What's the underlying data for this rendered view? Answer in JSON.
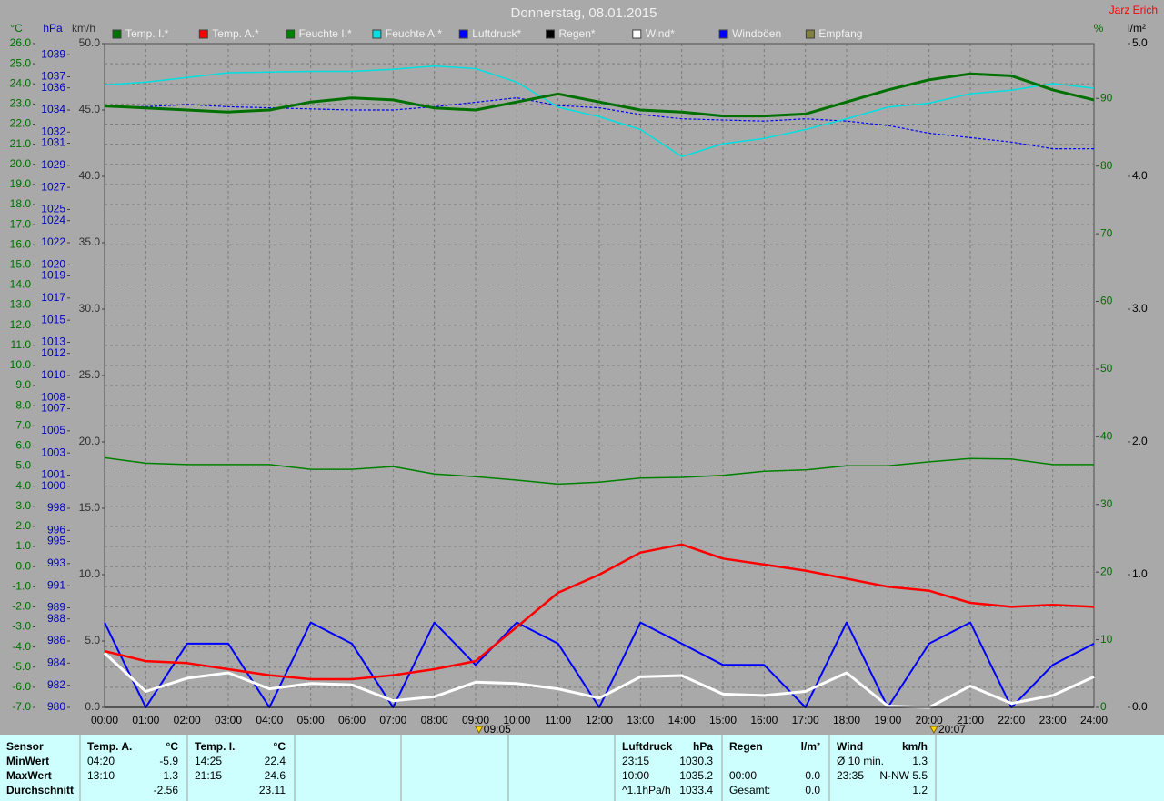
{
  "chart_data": {
    "type": "line",
    "title": "Donnerstag, 08.01.2015",
    "author": "Jarz Erich",
    "x": [
      "00:00",
      "01:00",
      "02:00",
      "03:00",
      "04:00",
      "05:00",
      "06:00",
      "07:00",
      "08:00",
      "09:00",
      "10:00",
      "11:00",
      "12:00",
      "13:00",
      "14:00",
      "15:00",
      "16:00",
      "17:00",
      "18:00",
      "19:00",
      "20:00",
      "21:00",
      "22:00",
      "23:00",
      "24:00"
    ],
    "ylabel": "°C",
    "hpa_label": "hPa",
    "kmh_label": "km/h",
    "y2label": "%",
    "rain_label": "l/m²",
    "ylim": [
      -7,
      26
    ],
    "yticks": [
      {
        "value": -7,
        "label": "-7.0"
      },
      {
        "value": -6,
        "label": "-6.0"
      },
      {
        "value": -5,
        "label": "-5.0"
      },
      {
        "value": -4,
        "label": "-4.0"
      },
      {
        "value": -3,
        "label": "-3.0"
      },
      {
        "value": -2,
        "label": "-2.0"
      },
      {
        "value": -1,
        "label": "-1.0"
      },
      {
        "value": 0,
        "label": "0.0"
      },
      {
        "value": 1,
        "label": "1.0"
      },
      {
        "value": 2,
        "label": "2.0"
      },
      {
        "value": 3,
        "label": "3.0"
      },
      {
        "value": 4,
        "label": "4.0"
      },
      {
        "value": 5,
        "label": "5.0"
      },
      {
        "value": 6,
        "label": "6.0"
      },
      {
        "value": 7,
        "label": "7.0"
      },
      {
        "value": 8,
        "label": "8.0"
      },
      {
        "value": 9,
        "label": "9.0"
      },
      {
        "value": 10,
        "label": "10.0"
      },
      {
        "value": 11,
        "label": "11.0"
      },
      {
        "value": 12,
        "label": "12.0"
      },
      {
        "value": 13,
        "label": "13.0"
      },
      {
        "value": 14,
        "label": "14.0"
      },
      {
        "value": 15,
        "label": "15.0"
      },
      {
        "value": 16,
        "label": "16.0"
      },
      {
        "value": 17,
        "label": "17.0"
      },
      {
        "value": 18,
        "label": "18.0"
      },
      {
        "value": 19,
        "label": "19.0"
      },
      {
        "value": 20,
        "label": "20.0"
      },
      {
        "value": 21,
        "label": "21.0"
      },
      {
        "value": 22,
        "label": "22.0"
      },
      {
        "value": 23,
        "label": "23.0"
      },
      {
        "value": 24,
        "label": "24.0"
      },
      {
        "value": 25,
        "label": "25.0"
      },
      {
        "value": 26,
        "label": "26.0"
      }
    ],
    "hpa_lim": [
      980,
      1040
    ],
    "hpa_ticks": [
      980,
      982,
      984,
      986,
      988,
      989,
      991,
      993,
      995,
      996,
      998,
      1000,
      1001,
      1003,
      1005,
      1007,
      1008,
      1010,
      1012,
      1013,
      1015,
      1017,
      1019,
      1020,
      1022,
      1024,
      1025,
      1027,
      1029,
      1031,
      1032,
      1034,
      1036,
      1037,
      1039
    ],
    "kmh_lim": [
      0,
      50
    ],
    "kmh_ticks": [
      {
        "value": 0,
        "label": "0.0"
      },
      {
        "value": 5,
        "label": "5.0"
      },
      {
        "value": 10,
        "label": "10.0"
      },
      {
        "value": 15,
        "label": "15.0"
      },
      {
        "value": 20,
        "label": "20.0"
      },
      {
        "value": 25,
        "label": "25.0"
      },
      {
        "value": 30,
        "label": "30.0"
      },
      {
        "value": 35,
        "label": "35.0"
      },
      {
        "value": 40,
        "label": "40.0"
      },
      {
        "value": 45,
        "label": "45.0"
      },
      {
        "value": 50,
        "label": "50.0"
      }
    ],
    "y2lim": [
      0,
      98.1
    ],
    "y2ticks": [
      0,
      10,
      20,
      30,
      40,
      50,
      60,
      70,
      80,
      90
    ],
    "rain_lim": [
      0,
      5
    ],
    "rain_ticks": [
      {
        "value": 0,
        "label": "0.0"
      },
      {
        "value": 1,
        "label": "1.0"
      },
      {
        "value": 2,
        "label": "2.0"
      },
      {
        "value": 3,
        "label": "3.0"
      },
      {
        "value": 4,
        "label": "4.0"
      },
      {
        "value": 5,
        "label": "5.0"
      }
    ],
    "grid": true,
    "series": [
      {
        "name": "Temp. I.*",
        "color": "#007000",
        "axis": "y",
        "width": 3,
        "values": [
          22.9,
          22.8,
          22.7,
          22.6,
          22.7,
          23.1,
          23.3,
          23.2,
          22.8,
          22.7,
          23.1,
          23.5,
          23.1,
          22.7,
          22.6,
          22.4,
          22.4,
          22.5,
          23.1,
          23.7,
          24.2,
          24.5,
          24.4,
          23.7,
          23.2
        ]
      },
      {
        "name": "Temp. A.*",
        "color": "#ff0000",
        "axis": "y",
        "width": 2.5,
        "values": [
          -4.2,
          -4.7,
          -4.8,
          -5.1,
          -5.4,
          -5.6,
          -5.6,
          -5.4,
          -5.1,
          -4.7,
          -3.0,
          -1.3,
          -0.4,
          0.7,
          1.1,
          0.4,
          0.1,
          -0.2,
          -0.6,
          -1.0,
          -1.2,
          -1.8,
          -2.0,
          -1.9,
          -2.0
        ]
      },
      {
        "name": "Feuchte I.*",
        "color": "#008000",
        "axis": "y2",
        "width": 1.5,
        "values": [
          36.9,
          36.1,
          35.9,
          35.9,
          35.9,
          35.2,
          35.2,
          35.6,
          34.5,
          34.1,
          33.6,
          33.0,
          33.3,
          33.9,
          34.0,
          34.3,
          34.9,
          35.1,
          35.7,
          35.7,
          36.3,
          36.8,
          36.7,
          35.9,
          35.9
        ]
      },
      {
        "name": "Feuchte A.*",
        "color": "#00e0e0",
        "axis": "y2",
        "width": 1.5,
        "values": [
          92.0,
          92.4,
          93.1,
          93.8,
          93.9,
          94.0,
          94.0,
          94.3,
          94.8,
          94.4,
          92.4,
          88.7,
          87.3,
          85.4,
          81.4,
          83.3,
          84.1,
          85.4,
          87.0,
          88.7,
          89.3,
          90.7,
          91.2,
          92.2,
          91.5
        ]
      },
      {
        "name": "Luftdruck*",
        "color": "#0000ff",
        "axis": "hpa",
        "width": 1.2,
        "dashed": true,
        "values": [
          1034.3,
          1034.3,
          1034.5,
          1034.3,
          1034.2,
          1034.1,
          1034.0,
          1034.0,
          1034.3,
          1034.7,
          1035.1,
          1034.4,
          1034.2,
          1033.6,
          1033.2,
          1033.1,
          1033.0,
          1033.2,
          1033.0,
          1032.6,
          1031.9,
          1031.5,
          1031.1,
          1030.5,
          1030.5
        ]
      },
      {
        "name": "Regen*",
        "color": "#000000",
        "axis": "rain",
        "width": 1,
        "values": [
          0,
          0,
          0,
          0,
          0,
          0,
          0,
          0,
          0,
          0,
          0,
          0,
          0,
          0,
          0,
          0,
          0,
          0,
          0,
          0,
          0,
          0,
          0,
          0,
          0
        ]
      },
      {
        "name": "Wind*",
        "color": "#ffffff",
        "axis": "kmh",
        "width": 3,
        "values": [
          4.1,
          1.2,
          2.2,
          2.6,
          1.4,
          1.8,
          1.7,
          0.5,
          0.8,
          1.9,
          1.8,
          1.4,
          0.7,
          2.3,
          2.4,
          1.0,
          0.9,
          1.2,
          2.6,
          0.1,
          0,
          1.6,
          0.3,
          0.9,
          2.3
        ]
      },
      {
        "name": "Windböen",
        "color": "#0000ff",
        "axis": "kmh",
        "width": 2,
        "values": [
          6.4,
          0,
          4.8,
          4.8,
          0,
          6.4,
          4.8,
          0,
          6.4,
          3.2,
          6.4,
          4.8,
          0,
          6.4,
          4.8,
          3.2,
          3.2,
          0,
          6.4,
          0,
          4.8,
          6.4,
          0,
          3.2,
          4.8
        ]
      },
      {
        "name": "Empfang",
        "color": "#808040"
      }
    ],
    "annotations": [
      "09:05",
      "20:07"
    ]
  },
  "stats": {
    "sensor": "Sensor",
    "row_labels": [
      "MinWert",
      "MaxWert",
      "Durchschnitt"
    ],
    "panels": [
      {
        "title": "Temp. A.",
        "unit": "°C",
        "rows": [
          [
            "04:20",
            "-5.9"
          ],
          [
            "13:10",
            "1.3"
          ],
          [
            "-2.56"
          ]
        ]
      },
      {
        "title": "Temp. I.",
        "unit": "°C",
        "rows": [
          [
            "14:25",
            "22.4"
          ],
          [
            "21:15",
            "24.6"
          ],
          [
            "23.11"
          ]
        ]
      },
      {
        "title": "Luftdruck",
        "unit": "hPa",
        "rows": [
          [
            "23:15",
            "1030.3"
          ],
          [
            "10:00",
            "1035.2"
          ],
          [
            "^1.1hPa/h",
            "1033.4"
          ]
        ]
      },
      {
        "title": "Regen",
        "unit": "l/m²",
        "rows": [
          [],
          [
            "00:00",
            "0.0"
          ],
          [
            "Gesamt:",
            "0.0"
          ]
        ]
      },
      {
        "title": "Wind",
        "unit": "km/h",
        "rows": [
          [
            "Ø 10 min.",
            "1.3"
          ],
          [
            "23:35",
            "N-NW 5.5"
          ],
          [
            "1.2"
          ]
        ]
      }
    ]
  }
}
